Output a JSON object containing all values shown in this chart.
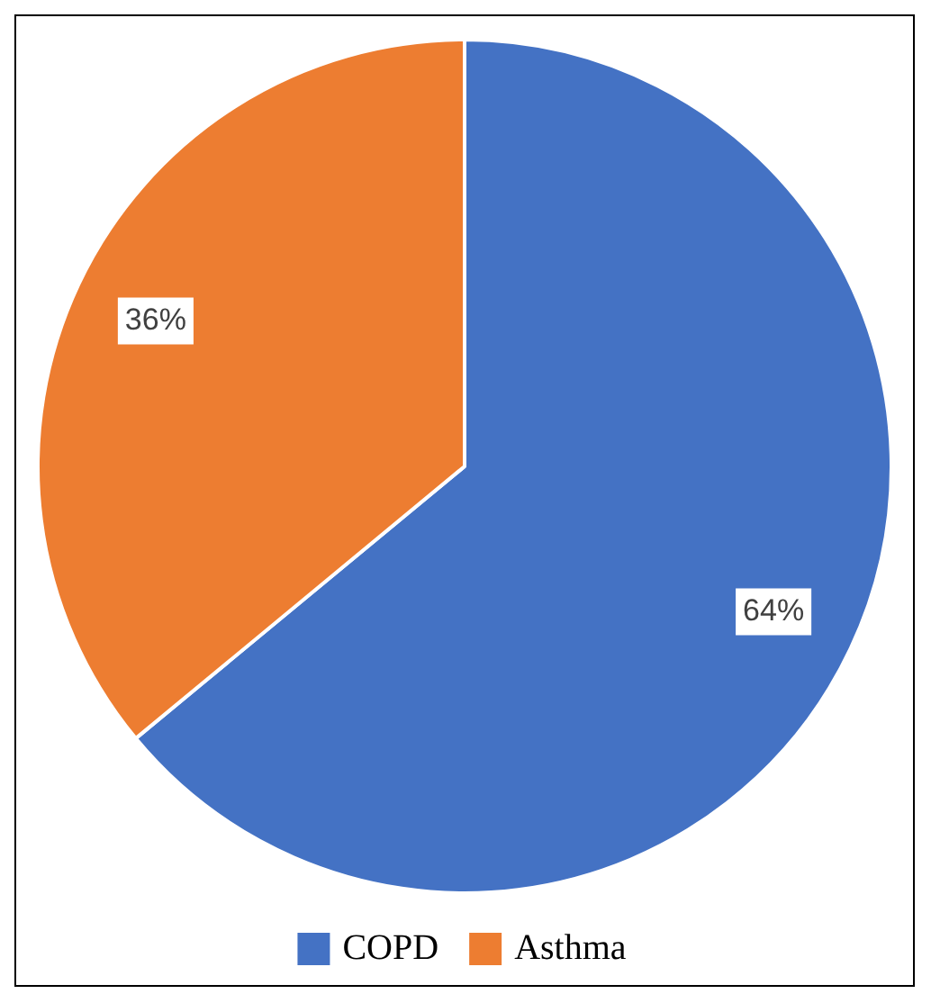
{
  "chart_data": {
    "type": "pie",
    "categories": [
      "COPD",
      "Asthma"
    ],
    "values": [
      64,
      36
    ],
    "colors": [
      "#4472c4",
      "#ed7d31"
    ],
    "value_labels": [
      "64%",
      "36%"
    ],
    "legend": "bottom"
  }
}
